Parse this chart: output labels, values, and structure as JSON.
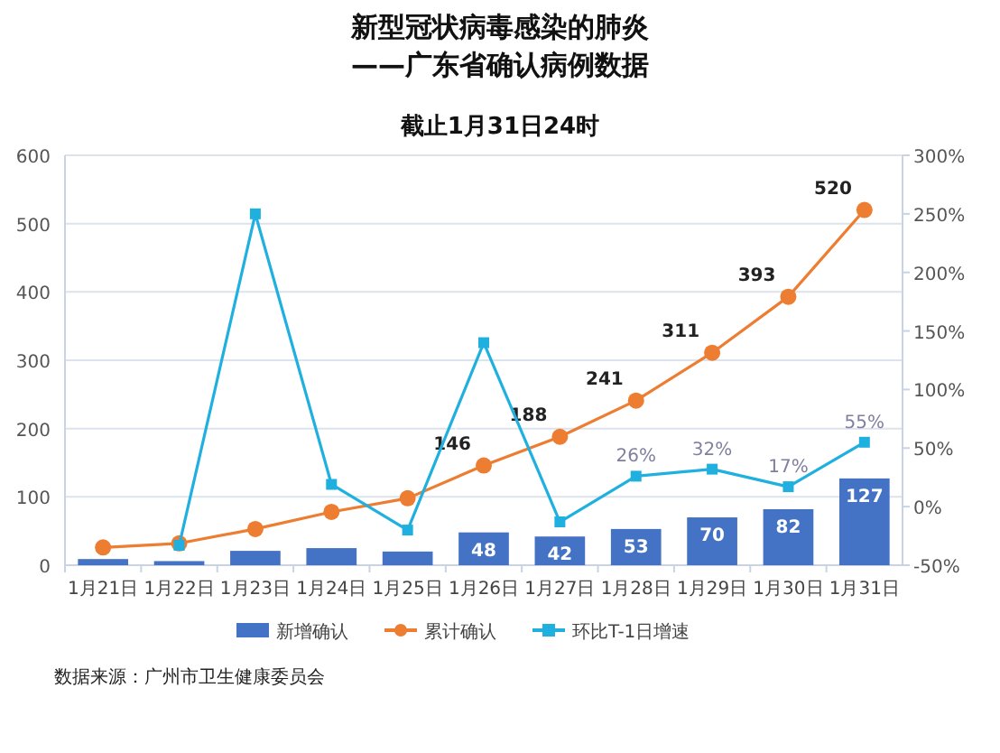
{
  "chart_data": {
    "type": "bar",
    "title": "新型冠状病毒感染的肺炎",
    "subtitle": "——广东省确认病例数据",
    "annotations": [
      "截止1月31日24时",
      "数据来源：广州市卫生健康委员会"
    ],
    "categories": [
      "1月21日",
      "1月22日",
      "1月23日",
      "1月24日",
      "1月25日",
      "1月26日",
      "1月27日",
      "1月28日",
      "1月29日",
      "1月30日",
      "1月31日"
    ],
    "series": [
      {
        "name": "新增确认",
        "color": "#4472c4",
        "values": [
          9,
          6,
          21,
          25,
          20,
          48,
          42,
          53,
          70,
          82,
          127
        ],
        "value_labels": [
          null,
          null,
          null,
          null,
          null,
          "48",
          "42",
          "53",
          "70",
          "82",
          "127"
        ]
      },
      {
        "name": "累计确认",
        "type": "line",
        "color": "#ed7d31",
        "marker": "circle",
        "values": [
          26,
          32,
          53,
          78,
          98,
          146,
          188,
          241,
          311,
          393,
          520
        ],
        "value_labels": [
          null,
          null,
          null,
          null,
          null,
          "146",
          "188",
          "241",
          "311",
          "393",
          "520"
        ]
      },
      {
        "name": "环比T-1日增速",
        "type": "line",
        "axis": "y2",
        "color": "#1fb0e0",
        "marker": "square",
        "values": [
          null,
          -33,
          250,
          19,
          -20,
          140,
          -13,
          26,
          32,
          17,
          55
        ],
        "value_labels": [
          null,
          null,
          null,
          null,
          null,
          null,
          null,
          "26%",
          "32%",
          "17%",
          "55%"
        ]
      }
    ],
    "ylim": [
      0,
      600
    ],
    "yticks": [
      0,
      100,
      200,
      300,
      400,
      500,
      600
    ],
    "y2lim": [
      -50,
      300
    ],
    "y2ticks": [
      {
        "value": -50,
        "label": "-50%"
      },
      {
        "value": 0,
        "label": "0%"
      },
      {
        "value": 50,
        "label": "50%"
      },
      {
        "value": 100,
        "label": "100%"
      },
      {
        "value": 150,
        "label": "150%"
      },
      {
        "value": 200,
        "label": "200%"
      },
      {
        "value": 250,
        "label": "250%"
      },
      {
        "value": 300,
        "label": "300%"
      }
    ],
    "grid": "y",
    "legend": "bottom"
  }
}
